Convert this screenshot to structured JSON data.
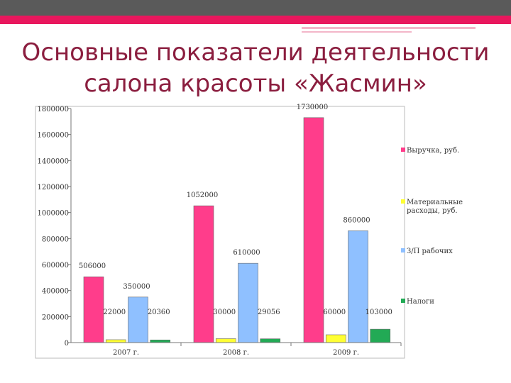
{
  "title_line1": "Основные показатели деятельности",
  "title_line2": "салона красоты «Жасмин»",
  "colors": {
    "title": "#8b1e3f",
    "accent_band": "#e8175d",
    "dark_band": "#5a5a5a"
  },
  "chart_data": {
    "type": "bar",
    "categories": [
      "2007 г.",
      "2008 г.",
      "2009 г."
    ],
    "ylim": [
      0,
      1800000
    ],
    "y_ticks": [
      0,
      200000,
      400000,
      600000,
      800000,
      1000000,
      1200000,
      1400000,
      1600000,
      1800000
    ],
    "y_tick_labels": [
      "0",
      "200000",
      "400000",
      "600000",
      "800000",
      "1000000",
      "1200000",
      "1400000",
      "1600000",
      "1800000"
    ],
    "legend_position": "right",
    "series": [
      {
        "name": "Выручка, руб.",
        "color": "#ff3d8b",
        "values": [
          506000,
          1052000,
          1730000
        ],
        "labels": [
          "506000",
          "1052000",
          "1730000"
        ]
      },
      {
        "name": "Материальные расходы, руб.",
        "color": "#ffff33",
        "values": [
          22000,
          30000,
          60000
        ],
        "labels": [
          "22000",
          "30000",
          "60000"
        ]
      },
      {
        "name": "З/П рабочих",
        "color": "#8fc0ff",
        "values": [
          350000,
          610000,
          860000
        ],
        "labels": [
          "350000",
          "610000",
          "860000"
        ]
      },
      {
        "name": "Налоги",
        "color": "#22aa55",
        "values": [
          20360,
          29056,
          103000
        ],
        "labels": [
          "20360",
          "29056",
          "103000"
        ]
      }
    ]
  }
}
